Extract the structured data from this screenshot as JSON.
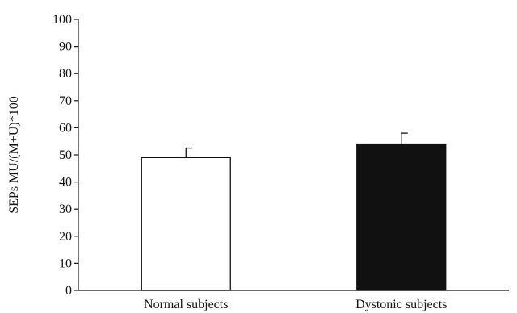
{
  "chart_data": {
    "type": "bar",
    "categories": [
      "Normal subjects",
      "Dystonic subjects"
    ],
    "values": [
      49,
      54
    ],
    "error_upper": [
      52.5,
      58
    ],
    "bar_colors": [
      "#ffffff",
      "#111111"
    ],
    "ylabel": "SEPs MU/(M+U)*100",
    "xlabel": "",
    "ylim": [
      0,
      100
    ],
    "yticks": [
      0,
      10,
      20,
      30,
      40,
      50,
      60,
      70,
      80,
      90,
      100
    ],
    "grid": false,
    "legend": "none"
  }
}
